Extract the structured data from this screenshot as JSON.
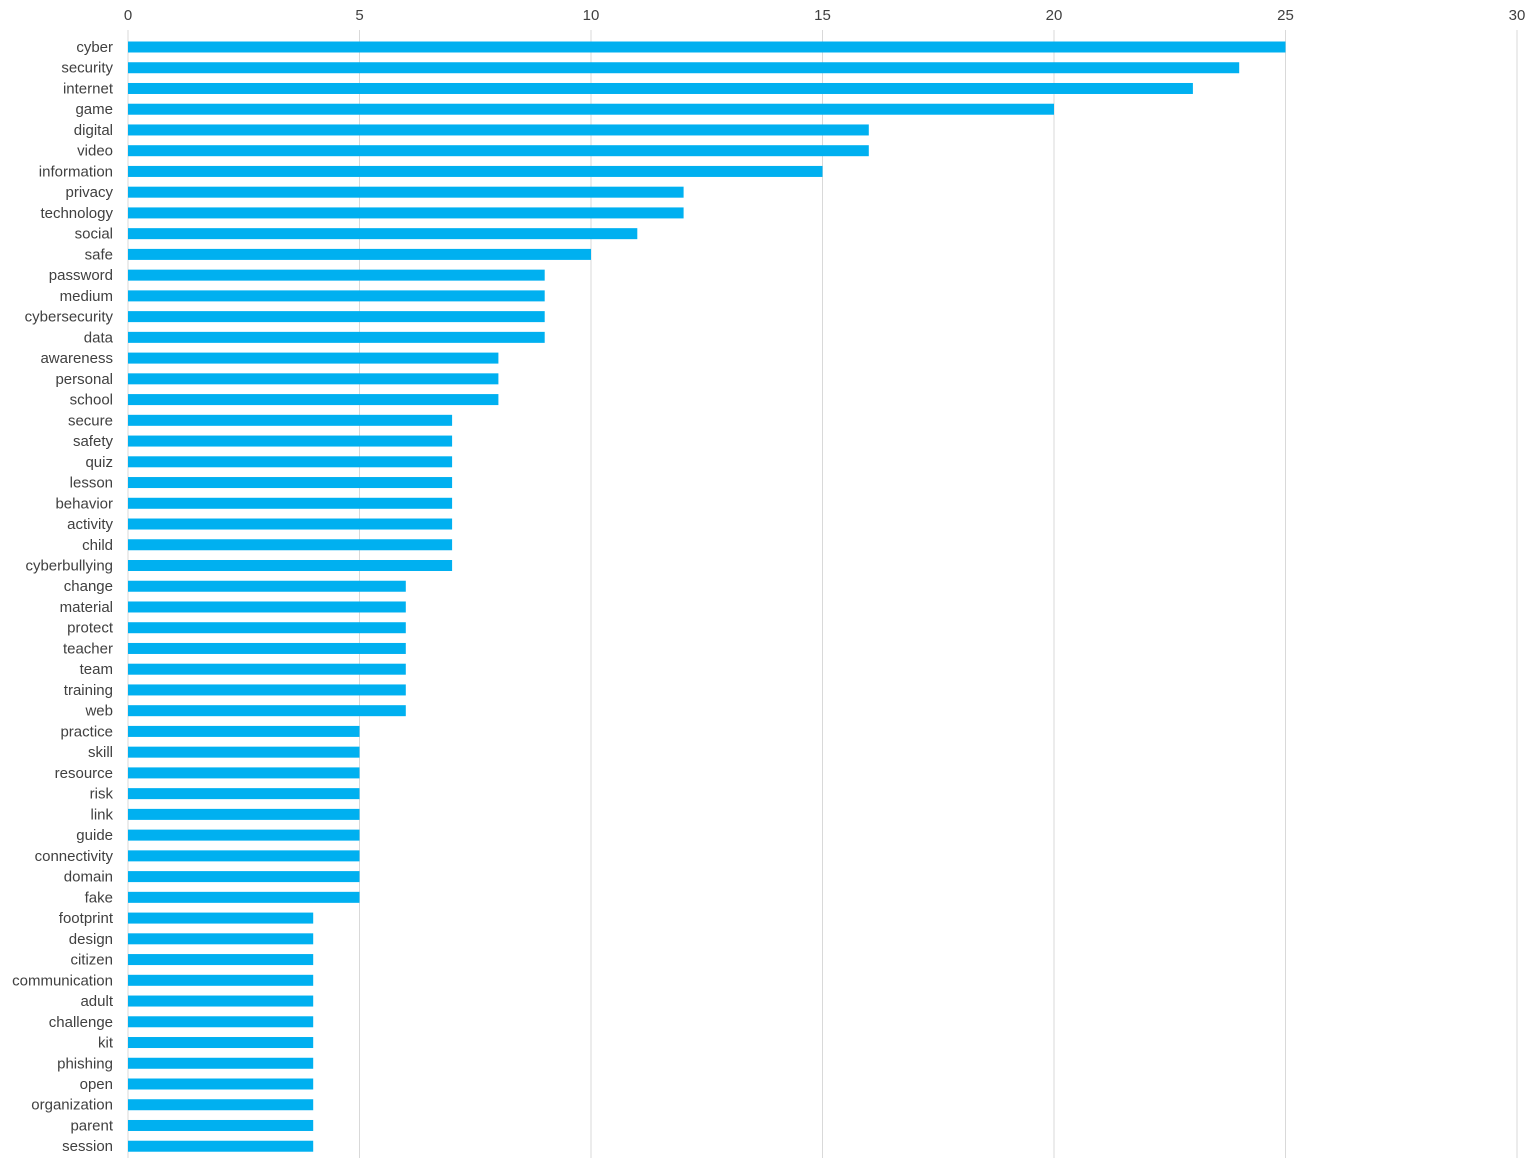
{
  "chart_data": {
    "type": "bar",
    "orientation": "horizontal",
    "title": "",
    "xlabel": "",
    "ylabel": "",
    "xlim": [
      0,
      30
    ],
    "x_ticks": [
      0,
      5,
      10,
      15,
      20,
      25,
      30
    ],
    "x_axis_position": "top",
    "grid": "vertical",
    "legend": "none",
    "bar_color": "#00b0f0",
    "grid_color": "#d9d9d9",
    "categories": [
      "cyber",
      "security",
      "internet",
      "game",
      "digital",
      "video",
      "information",
      "privacy",
      "technology",
      "social",
      "safe",
      "password",
      "medium",
      "cybersecurity",
      "data",
      "awareness",
      "personal",
      "school",
      "secure",
      "safety",
      "quiz",
      "lesson",
      "behavior",
      "activity",
      "child",
      "cyberbullying",
      "change",
      "material",
      "protect",
      "teacher",
      "team",
      "training",
      "web",
      "practice",
      "skill",
      "resource",
      "risk",
      "link",
      "guide",
      "connectivity",
      "domain",
      "fake",
      "footprint",
      "design",
      "citizen",
      "communication",
      "adult",
      "challenge",
      "kit",
      "phishing",
      "open",
      "organization",
      "parent",
      "session"
    ],
    "values": [
      25,
      24,
      23,
      20,
      16,
      16,
      15,
      12,
      12,
      11,
      10,
      9,
      9,
      9,
      9,
      8,
      8,
      8,
      7,
      7,
      7,
      7,
      7,
      7,
      7,
      7,
      6,
      6,
      6,
      6,
      6,
      6,
      6,
      5,
      5,
      5,
      5,
      5,
      5,
      5,
      5,
      5,
      4,
      4,
      4,
      4,
      4,
      4,
      4,
      4,
      4,
      4,
      4,
      4
    ]
  }
}
